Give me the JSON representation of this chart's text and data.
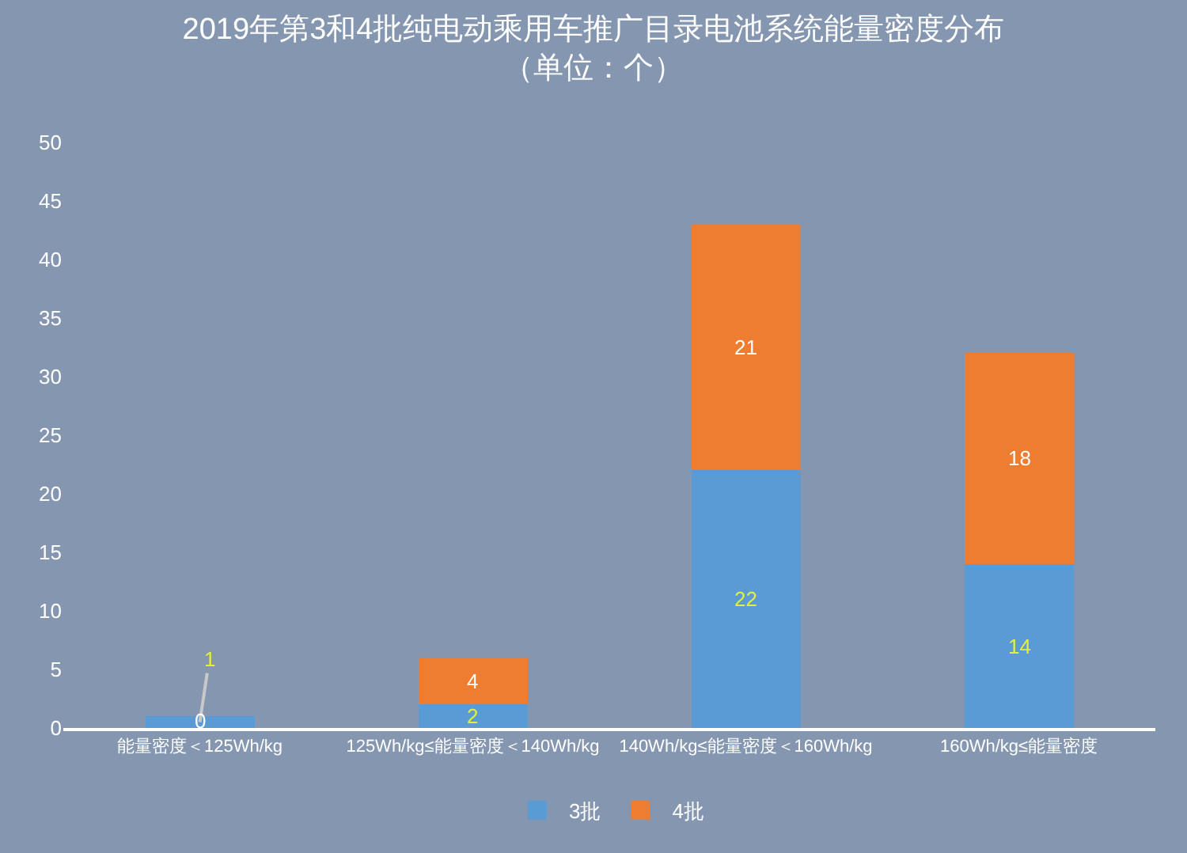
{
  "chart_data": {
    "type": "bar",
    "title": "2019年第3和4批纯电动乘用车推广目录电池系统能量密度分布",
    "subtitle": "（单位：个）",
    "categories": [
      "能量密度＜125Wh/kg",
      "125Wh/kg≤能量密度＜140Wh/kg",
      "140Wh/kg≤能量密度＜160Wh/kg",
      "160Wh/kg≤能量密度"
    ],
    "series": [
      {
        "name": "3批",
        "color": "#5b9bd5",
        "values": [
          1,
          2,
          22,
          14
        ]
      },
      {
        "name": "4批",
        "color": "#ed7d31",
        "values": [
          0,
          4,
          21,
          18
        ]
      }
    ],
    "stacked": true,
    "ylim": [
      0,
      50
    ],
    "yticks": [
      0,
      5,
      10,
      15,
      20,
      25,
      30,
      35,
      40,
      45,
      50
    ],
    "grid": false,
    "legend": "bottom",
    "data_labels": true
  }
}
